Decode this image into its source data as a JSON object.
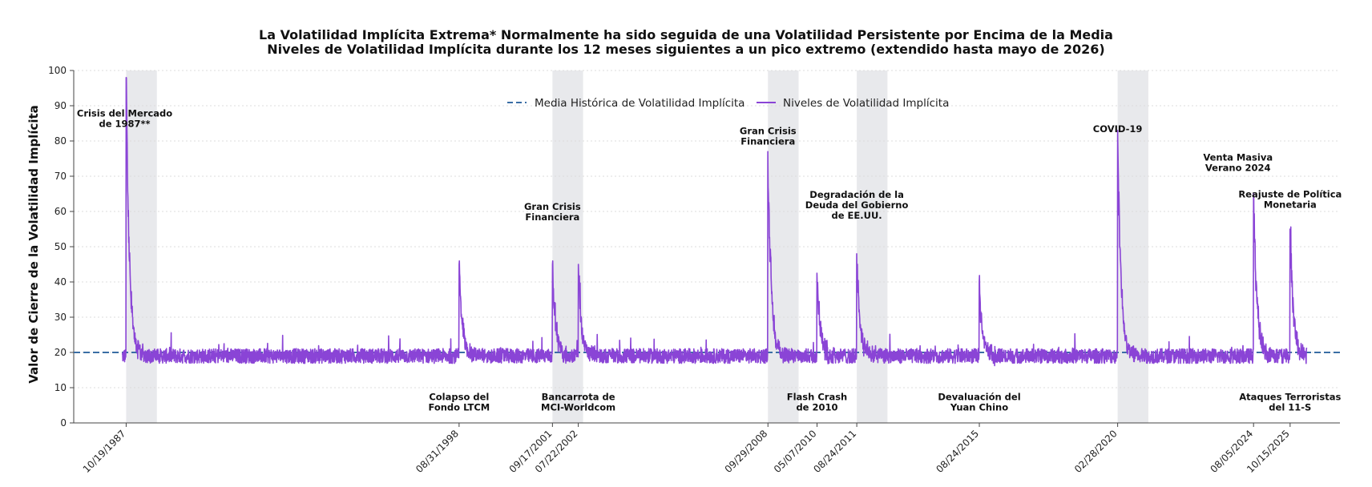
{
  "chart_data": {
    "type": "line",
    "title": "La Volatilidad Implícita Extrema* Normalmente ha sido seguida de una Volatilidad Persistente por Encima de la Media",
    "subtitle": "Niveles de Volatilidad Implícita durante los 12 meses siguientes a un pico extremo (extendido hasta mayo de 2026)",
    "ylabel": "Valor de Cierre de la Volatilidad Implícita",
    "xlabel": "",
    "ylim": [
      0,
      100
    ],
    "yticks": [
      0,
      10,
      20,
      30,
      40,
      50,
      60,
      70,
      80,
      90,
      100
    ],
    "xlim": [
      "1986-02-01",
      "2027-06-01"
    ],
    "grid": true,
    "legend_position": "top-center",
    "colors": {
      "mean": "#3a6ea5",
      "series": "#8a44d6",
      "shade": "#e8e9ec"
    },
    "x_tick_labels": [
      {
        "date": "1987-10-19",
        "label": "10/19/1987"
      },
      {
        "date": "1998-08-31",
        "label": "08/31/1998"
      },
      {
        "date": "2001-09-17",
        "label": "09/17/2001"
      },
      {
        "date": "2002-07-22",
        "label": "07/22/2002"
      },
      {
        "date": "2008-09-29",
        "label": "09/29/2008"
      },
      {
        "date": "2010-05-07",
        "label": "05/07/2010"
      },
      {
        "date": "2011-08-24",
        "label": "08/24/2011"
      },
      {
        "date": "2015-08-24",
        "label": "08/24/2015"
      },
      {
        "date": "2020-02-28",
        "label": "02/28/2020"
      },
      {
        "date": "2024-08-05",
        "label": "08/05/2024"
      },
      {
        "date": "2025-10-15",
        "label": "10/15/2025"
      }
    ],
    "shaded_periods": [
      {
        "start": "1987-10-19",
        "end": "1988-10-19"
      },
      {
        "start": "2001-09-17",
        "end": "2002-09-17"
      },
      {
        "start": "2008-09-29",
        "end": "2009-09-29"
      },
      {
        "start": "2011-08-24",
        "end": "2012-08-24"
      },
      {
        "start": "2020-02-28",
        "end": "2021-02-28"
      }
    ],
    "series": [
      {
        "name": "Media Histórica de Volatilidad Implícita",
        "style": "dashed",
        "value": 20
      },
      {
        "name": "Niveles de Volatilidad Implícita",
        "style": "solid",
        "baseline": 19,
        "range": [
          "1987-09-01",
          "2026-05-01"
        ],
        "spikes": [
          {
            "date": "1987-10-19",
            "peak": 98
          },
          {
            "date": "1998-08-31",
            "peak": 45
          },
          {
            "date": "2001-09-17",
            "peak": 45
          },
          {
            "date": "2002-07-22",
            "peak": 45
          },
          {
            "date": "2008-09-29",
            "peak": 77
          },
          {
            "date": "2010-05-07",
            "peak": 42.5
          },
          {
            "date": "2011-08-24",
            "peak": 48
          },
          {
            "date": "2015-08-24",
            "peak": 40
          },
          {
            "date": "2020-02-28",
            "peak": 83
          },
          {
            "date": "2024-08-05",
            "peak": 65
          },
          {
            "date": "2025-10-15",
            "peak": 55
          }
        ]
      }
    ],
    "annotations": [
      {
        "lines": [
          "Crisis del Mercado",
          "de 1987**"
        ],
        "date": "1987-10-01",
        "y": 84
      },
      {
        "lines": [
          "Colapso del",
          "Fondo LTCM"
        ],
        "date": "1998-08-31",
        "y": 3.5
      },
      {
        "lines": [
          "Gran Crisis",
          "Financiera"
        ],
        "date": "2001-09-17",
        "y": 57.5
      },
      {
        "lines": [
          "Bancarrota de",
          "MCI-Worldcom"
        ],
        "date": "2002-07-22",
        "y": 3.5
      },
      {
        "lines": [
          "Gran Crisis",
          "Financiera"
        ],
        "date": "2008-09-29",
        "y": 79
      },
      {
        "lines": [
          "Flash Crash",
          "de 2010"
        ],
        "date": "2010-05-07",
        "y": 3.5
      },
      {
        "lines": [
          "Degradación de la",
          "Deuda del Gobierno",
          "de EE.UU."
        ],
        "date": "2011-08-24",
        "y": 58
      },
      {
        "lines": [
          "Devaluación del",
          "Yuan Chino"
        ],
        "date": "2015-08-24",
        "y": 3.5
      },
      {
        "lines": [
          "COVID-19"
        ],
        "date": "2020-02-28",
        "y": 82.5
      },
      {
        "lines": [
          "Venta Masiva",
          "Verano 2024"
        ],
        "date": "2024-02-01",
        "y": 71.5
      },
      {
        "lines": [
          "Reajuste de Política",
          "Monetaria"
        ],
        "date": "2025-10-15",
        "y": 61
      },
      {
        "lines": [
          "Ataques Terroristas",
          "del 11-S"
        ],
        "date": "2025-10-15",
        "y": 3.5
      }
    ]
  }
}
